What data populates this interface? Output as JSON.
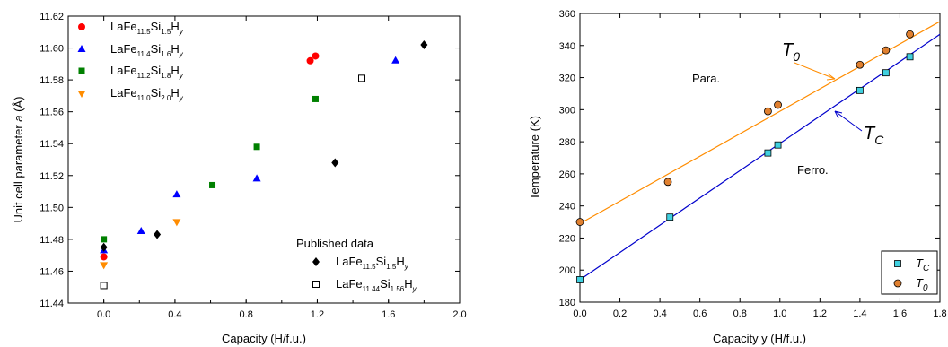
{
  "chart_data": [
    {
      "type": "scatter",
      "xlabel": "Capacity (H/f.u.)",
      "ylabel": "Unit cell parameter a (Å)",
      "ylabel_parts": {
        "pre": "Unit cell parameter ",
        "ital": "a",
        "post": " (Å)"
      },
      "xlim": [
        -0.2,
        2.0
      ],
      "ylim": [
        11.44,
        11.62
      ],
      "xticks": [
        "0.0",
        "0.4",
        "0.8",
        "1.2",
        "1.6",
        "2.0"
      ],
      "xtick_values": [
        0.0,
        0.4,
        0.8,
        1.2,
        1.6,
        2.0
      ],
      "yticks": [
        "11.44",
        "11.46",
        "11.48",
        "11.50",
        "11.52",
        "11.54",
        "11.56",
        "11.58",
        "11.60",
        "11.62"
      ],
      "ytick_values": [
        11.44,
        11.46,
        11.48,
        11.5,
        11.52,
        11.54,
        11.56,
        11.58,
        11.6,
        11.62
      ],
      "legend_position": "top-left",
      "series": [
        {
          "name": "LaFe11.5Si1.5Hy",
          "label_parts": [
            "LaFe",
            "11.5",
            "Si",
            "1.5",
            "H",
            "y"
          ],
          "marker": "circle",
          "color": "#ff0000",
          "x": [
            0.0,
            1.16,
            1.19
          ],
          "y": [
            11.469,
            11.592,
            11.595
          ]
        },
        {
          "name": "LaFe11.4Si1.6Hy",
          "label_parts": [
            "LaFe",
            "11.4",
            "Si",
            "1.6",
            "H",
            "y"
          ],
          "marker": "triangle-up",
          "color": "#0000ff",
          "x": [
            0.0,
            0.21,
            0.41,
            0.86,
            1.64
          ],
          "y": [
            11.473,
            11.485,
            11.508,
            11.518,
            11.592
          ]
        },
        {
          "name": "LaFe11.2Si1.8Hy",
          "label_parts": [
            "LaFe",
            "11.2",
            "Si",
            "1.8",
            "H",
            "y"
          ],
          "marker": "square",
          "color": "#008000",
          "x": [
            0.0,
            0.61,
            0.86,
            1.19
          ],
          "y": [
            11.48,
            11.514,
            11.538,
            11.568
          ]
        },
        {
          "name": "LaFe11.0Si2.0Hy",
          "label_parts": [
            "LaFe",
            "11.0",
            "Si",
            "2.0",
            "H",
            "y"
          ],
          "marker": "triangle-down",
          "color": "#ff8c00",
          "x": [
            0.0,
            0.41
          ],
          "y": [
            11.464,
            11.491
          ]
        },
        {
          "name": "LaFe11.5Si1.5Hy (published)",
          "label_parts": [
            "LaFe",
            "11.5",
            "Si",
            "1.5",
            "H",
            "y"
          ],
          "marker": "diamond",
          "color": "#000000",
          "x": [
            0.0,
            0.3,
            1.3,
            1.8
          ],
          "y": [
            11.475,
            11.483,
            11.528,
            11.602
          ]
        },
        {
          "name": "LaFe11.44Si1.56Hy (published)",
          "label_parts": [
            "LaFe",
            "11.44",
            "Si",
            "1.56",
            "H",
            "y"
          ],
          "marker": "open-square",
          "color": "#000000",
          "x": [
            0.0,
            1.45
          ],
          "y": [
            11.451,
            11.581
          ]
        }
      ],
      "published_legend_title": "Published data"
    },
    {
      "type": "scatter",
      "xlabel": "Capacity y (H/f.u.)",
      "ylabel": "Temperature (K)",
      "xlim": [
        0.0,
        1.8
      ],
      "ylim": [
        180,
        360
      ],
      "xticks": [
        "0.0",
        "0.2",
        "0.4",
        "0.6",
        "0.8",
        "1.0",
        "1.2",
        "1.4",
        "1.6",
        "1.8"
      ],
      "xtick_values": [
        0.0,
        0.2,
        0.4,
        0.6,
        0.8,
        1.0,
        1.2,
        1.4,
        1.6,
        1.8
      ],
      "yticks": [
        "180",
        "200",
        "220",
        "240",
        "260",
        "280",
        "300",
        "320",
        "340",
        "360"
      ],
      "ytick_values": [
        180,
        200,
        220,
        240,
        260,
        280,
        300,
        320,
        340,
        360
      ],
      "legend_position": "bottom-right",
      "series": [
        {
          "name": "TC",
          "label_main": "T",
          "label_sub": "C",
          "marker": "square",
          "color": "#40d0e0",
          "x": [
            0.0,
            0.45,
            0.94,
            0.99,
            1.4,
            1.53,
            1.65
          ],
          "y": [
            194,
            233,
            273,
            278,
            312,
            323,
            333
          ],
          "fit": {
            "x": [
              0.0,
              1.8
            ],
            "y": [
              194,
              347
            ],
            "color": "#0000cc"
          }
        },
        {
          "name": "T0",
          "label_main": "T",
          "label_sub": "0",
          "marker": "circle",
          "color": "#e08030",
          "x": [
            0.0,
            0.44,
            0.94,
            0.99,
            1.4,
            1.53,
            1.65
          ],
          "y": [
            230,
            255,
            299,
            303,
            328,
            337,
            347
          ],
          "fit": {
            "x": [
              0.0,
              1.8
            ],
            "y": [
              229,
              355
            ],
            "color": "#ff8c00"
          }
        }
      ],
      "annotations": {
        "para": "Para.",
        "ferro": "Ferro.",
        "t0": {
          "main": "T",
          "sub": "0"
        },
        "tc": {
          "main": "T",
          "sub": "C"
        }
      }
    }
  ]
}
